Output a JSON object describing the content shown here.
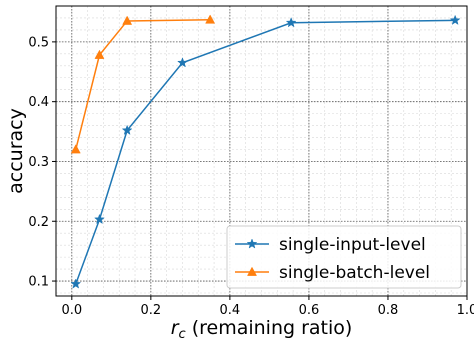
{
  "chart_data": {
    "type": "line",
    "xlabel_var": "r",
    "xlabel_sub": "c",
    "xlabel_rest": " (remaining ratio)",
    "ylabel": "accuracy",
    "xlim": [
      -0.04,
      1.0
    ],
    "ylim": [
      0.075,
      0.56
    ],
    "xticks": [
      0.0,
      0.2,
      0.4,
      0.6,
      0.8,
      1.0
    ],
    "xtick_labels": [
      "0.0",
      "0.2",
      "0.4",
      "0.6",
      "0.8",
      "1.0"
    ],
    "yticks": [
      0.1,
      0.2,
      0.3,
      0.4,
      0.5
    ],
    "ytick_labels": [
      "0.1",
      "0.2",
      "0.3",
      "0.4",
      "0.5"
    ],
    "grid": true,
    "minor_grid": true,
    "legend_position": "lower-right",
    "series": [
      {
        "name": "single-input-level",
        "color": "#1f77b4",
        "marker": "star",
        "x": [
          0.01,
          0.07,
          0.14,
          0.28,
          0.555,
          0.97
        ],
        "y": [
          0.095,
          0.203,
          0.352,
          0.465,
          0.532,
          0.536
        ]
      },
      {
        "name": "single-batch-level",
        "color": "#ff7f0e",
        "marker": "triangle",
        "x": [
          0.01,
          0.07,
          0.14,
          0.35
        ],
        "y": [
          0.32,
          0.478,
          0.535,
          0.537
        ]
      }
    ]
  }
}
